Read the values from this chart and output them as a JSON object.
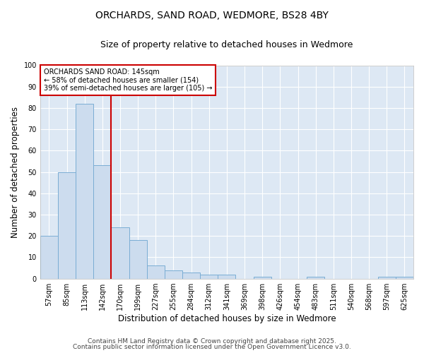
{
  "title_line1": "ORCHARDS, SAND ROAD, WEDMORE, BS28 4BY",
  "title_line2": "Size of property relative to detached houses in Wedmore",
  "xlabel": "Distribution of detached houses by size in Wedmore",
  "ylabel": "Number of detached properties",
  "bar_fill_color": "#ccdcee",
  "bar_edge_color": "#7aadd4",
  "bg_color": "#dde8f4",
  "fig_bg_color": "#ffffff",
  "categories": [
    "57sqm",
    "85sqm",
    "113sqm",
    "142sqm",
    "170sqm",
    "199sqm",
    "227sqm",
    "255sqm",
    "284sqm",
    "312sqm",
    "341sqm",
    "369sqm",
    "398sqm",
    "426sqm",
    "454sqm",
    "483sqm",
    "511sqm",
    "540sqm",
    "568sqm",
    "597sqm",
    "625sqm"
  ],
  "values": [
    20,
    50,
    82,
    53,
    24,
    18,
    6,
    4,
    3,
    2,
    2,
    0,
    1,
    0,
    0,
    1,
    0,
    0,
    0,
    1,
    1
  ],
  "ylim": [
    0,
    100
  ],
  "yticks": [
    0,
    10,
    20,
    30,
    40,
    50,
    60,
    70,
    80,
    90,
    100
  ],
  "red_line_after_index": 3,
  "red_line_color": "#cc0000",
  "annotation_text": "ORCHARDS SAND ROAD: 145sqm\n← 58% of detached houses are smaller (154)\n39% of semi-detached houses are larger (105) →",
  "annotation_box_facecolor": "#ffffff",
  "annotation_box_edgecolor": "#cc0000",
  "grid_color": "#ffffff",
  "title_fontsize": 10,
  "subtitle_fontsize": 9,
  "axis_label_fontsize": 8.5,
  "tick_fontsize": 7,
  "annotation_fontsize": 7,
  "footnote_fontsize": 6.5,
  "footnote1": "Contains HM Land Registry data © Crown copyright and database right 2025.",
  "footnote2": "Contains public sector information licensed under the Open Government Licence v3.0."
}
